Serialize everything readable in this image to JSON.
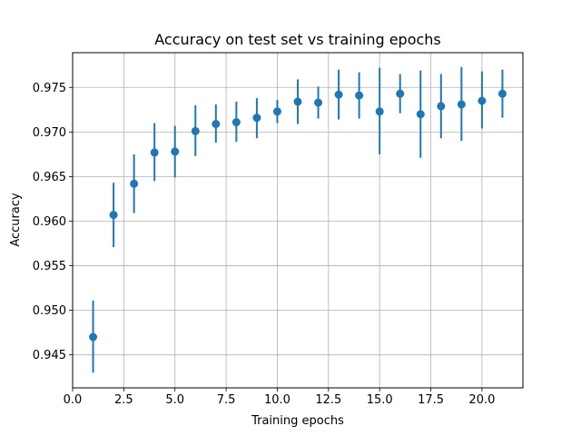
{
  "chart_data": {
    "type": "scatter",
    "title": "Accuracy on test set vs training epochs",
    "xlabel": "Training epochs",
    "ylabel": "Accuracy",
    "xlim": [
      0.0,
      22.0
    ],
    "ylim": [
      0.9413,
      0.9789
    ],
    "x_ticks": [
      "0.0",
      "2.5",
      "5.0",
      "7.5",
      "10.0",
      "12.5",
      "15.0",
      "17.5",
      "20.0"
    ],
    "x_tick_values": [
      0.0,
      2.5,
      5.0,
      7.5,
      10.0,
      12.5,
      15.0,
      17.5,
      20.0
    ],
    "y_ticks": [
      "0.945",
      "0.950",
      "0.955",
      "0.960",
      "0.965",
      "0.970",
      "0.975"
    ],
    "y_tick_values": [
      0.945,
      0.95,
      0.955,
      0.96,
      0.965,
      0.97,
      0.975
    ],
    "grid": true,
    "color": "#1f77b4",
    "series": [
      {
        "x": [
          1,
          2,
          3,
          4,
          5,
          6,
          7,
          8,
          9,
          10,
          11,
          12,
          13,
          14,
          15,
          16,
          17,
          18,
          19,
          20,
          21
        ],
        "y": [
          0.947,
          0.9607,
          0.9642,
          0.9677,
          0.9678,
          0.9701,
          0.9709,
          0.9711,
          0.9716,
          0.9723,
          0.9734,
          0.9733,
          0.9742,
          0.9741,
          0.9723,
          0.9743,
          0.972,
          0.9729,
          0.9731,
          0.9735,
          0.9743
        ],
        "err_low": [
          0.943,
          0.9571,
          0.9609,
          0.9645,
          0.9649,
          0.9673,
          0.9688,
          0.9689,
          0.9693,
          0.971,
          0.9709,
          0.9715,
          0.9714,
          0.9715,
          0.9675,
          0.9721,
          0.9671,
          0.9693,
          0.969,
          0.9704,
          0.9716
        ],
        "err_high": [
          0.9511,
          0.9643,
          0.9675,
          0.971,
          0.9707,
          0.973,
          0.9731,
          0.9734,
          0.9738,
          0.9736,
          0.9759,
          0.9751,
          0.977,
          0.9767,
          0.9772,
          0.9765,
          0.9769,
          0.9765,
          0.9773,
          0.9768,
          0.977
        ]
      }
    ]
  }
}
